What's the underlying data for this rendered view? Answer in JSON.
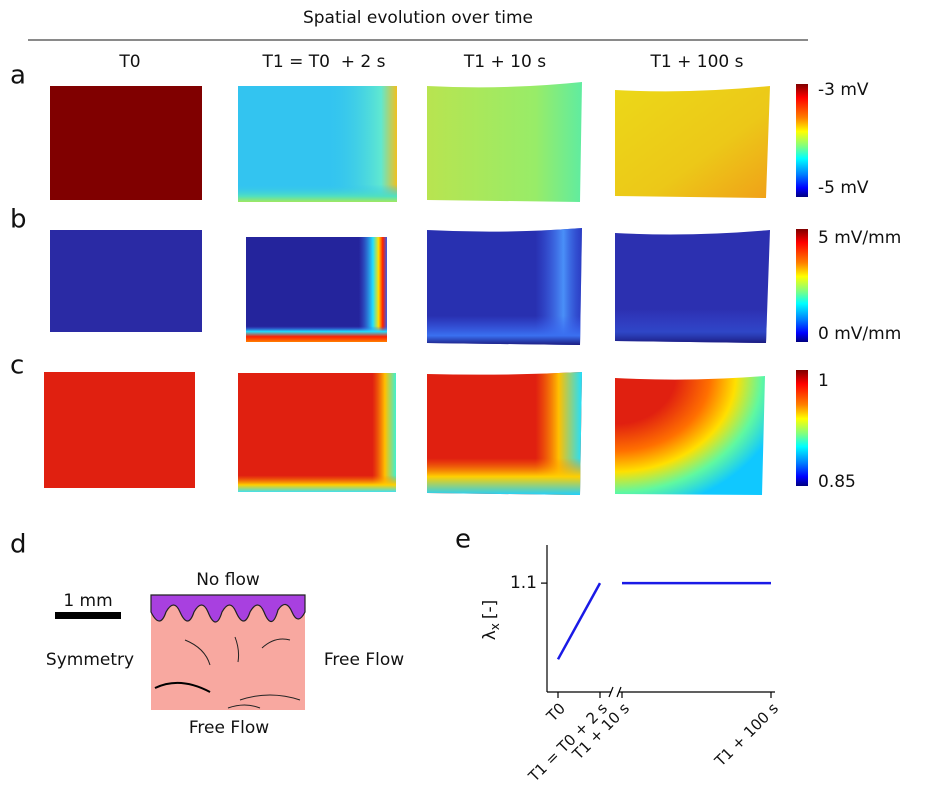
{
  "title": "Spatial evolution over time",
  "columns": [
    "T0",
    "T1 = T0  + 2 s",
    "T1 + 10 s",
    "T1 + 100 s"
  ],
  "rows": [
    {
      "label": "a",
      "colorbar": {
        "max": "-3 mV",
        "min": "-5 mV"
      }
    },
    {
      "label": "b",
      "colorbar": {
        "max": "5 mV/mm",
        "min": "0 mV/mm"
      }
    },
    {
      "label": "c",
      "colorbar": {
        "max": "1",
        "min": "0.85"
      }
    }
  ],
  "panel_d": {
    "label": "d",
    "scale_bar": "1 mm",
    "top": "No flow",
    "left": "Symmetry",
    "right": "Free Flow",
    "bottom": "Free Flow"
  },
  "chart_data": {
    "type": "line",
    "panel_label": "e",
    "ylabel": "λ",
    "ylabel_sub": "x",
    "ylabel_unit": "[-]",
    "categories": [
      "T0",
      "T1 = T0 + 2 s",
      "T1 + 10 s",
      "T1 + 100 s"
    ],
    "values": [
      1.03,
      1.1,
      1.1,
      1.1
    ],
    "color": "#1a1ae6",
    "ylim": [
      1.0,
      1.135
    ],
    "yticks": [
      1.1
    ],
    "axis_break_after": 1
  }
}
